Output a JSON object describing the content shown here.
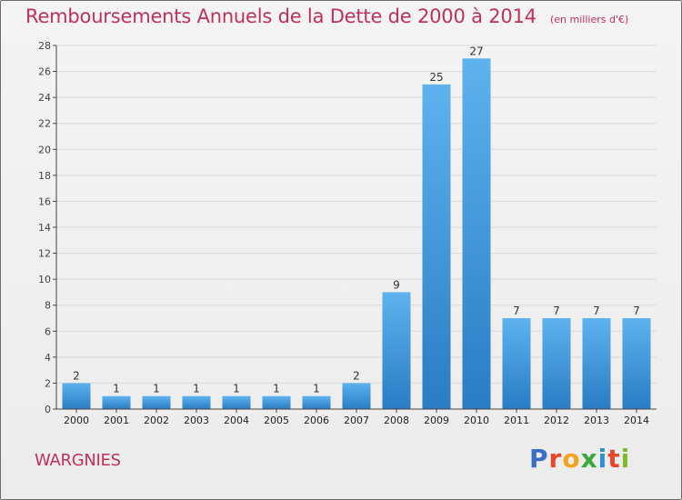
{
  "header": {
    "title": "Remboursements Annuels de la Dette de 2000 à 2014",
    "unit": "(en milliers d'€)"
  },
  "commune": "WARGNIES",
  "logo": {
    "letters": [
      "P",
      "r",
      "o",
      "x",
      "i",
      "t",
      "i"
    ],
    "colors": [
      "#3a6fc4",
      "#e8462a",
      "#f2a21c",
      "#3aa83a",
      "#2f8fd8",
      "#e8462a",
      "#7bbd2a"
    ]
  },
  "colors": {
    "bar_light": "#5eb2ee",
    "bar_dark": "#2a7cc4",
    "grid": "#d9d9d9",
    "axis": "#444444"
  },
  "chart_data": {
    "type": "bar",
    "title": "Remboursements Annuels de la Dette de 2000 à 2014",
    "xlabel": "",
    "ylabel": "",
    "categories": [
      "2000",
      "2001",
      "2002",
      "2003",
      "2004",
      "2005",
      "2006",
      "2007",
      "2008",
      "2009",
      "2010",
      "2011",
      "2012",
      "2013",
      "2014"
    ],
    "values": [
      2,
      1,
      1,
      1,
      1,
      1,
      1,
      2,
      9,
      25,
      27,
      7,
      7,
      7,
      7
    ],
    "ylim": [
      0,
      28
    ],
    "yticks": [
      0,
      2,
      4,
      6,
      8,
      10,
      12,
      14,
      16,
      18,
      20,
      22,
      24,
      26,
      28
    ],
    "grid": true,
    "value_labels": true
  }
}
